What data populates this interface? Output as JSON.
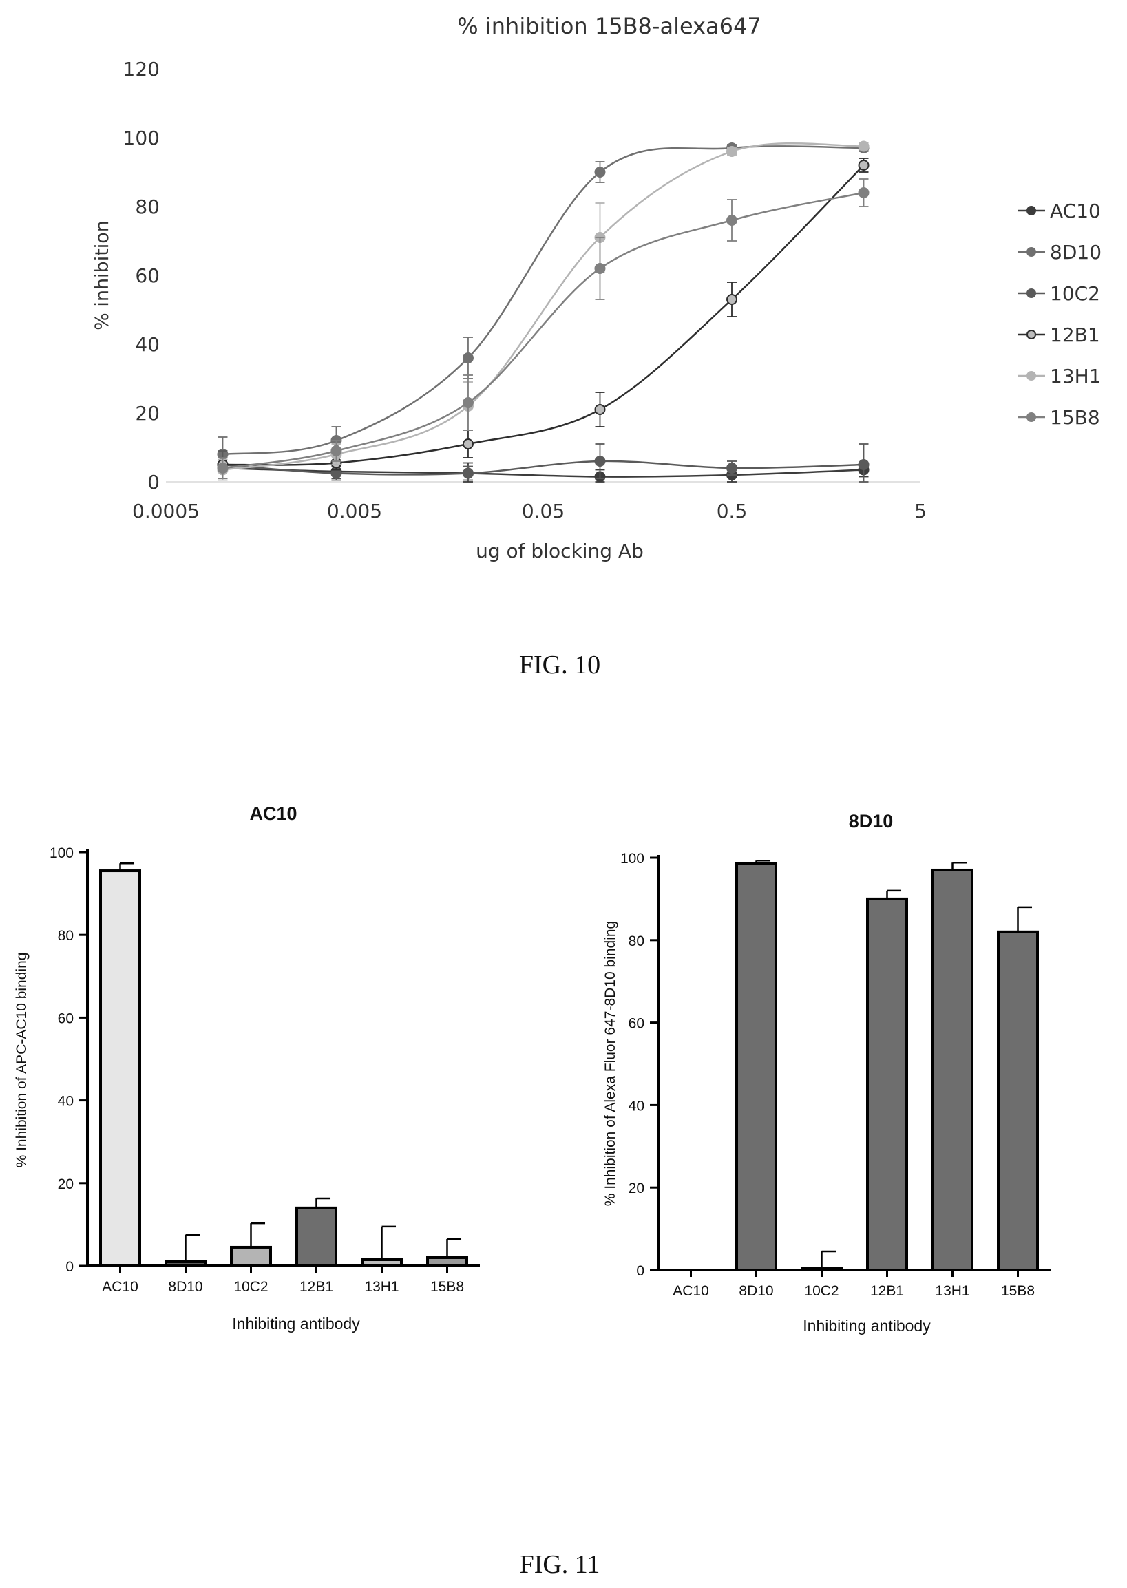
{
  "figures": {
    "fig10_caption": "FIG. 10",
    "fig11_caption": "FIG. 11"
  },
  "chart_data": [
    {
      "type": "line",
      "title": "% inhibition 15B8-alexa647",
      "xlabel": "ug of blocking Ab",
      "ylabel": "% inhibition",
      "x_scale": "log",
      "x_ticks": [
        "0.0005",
        "0.005",
        "0.05",
        "0.5",
        "5"
      ],
      "xlim": [
        0.0005,
        5
      ],
      "y_ticks": [
        "0",
        "20",
        "40",
        "60",
        "80",
        "100",
        "120"
      ],
      "ylim": [
        0,
        120
      ],
      "x": [
        0.001,
        0.004,
        0.02,
        0.1,
        0.5,
        2.5
      ],
      "legend": "right",
      "series": [
        {
          "name": "AC10",
          "color": "#3c3c3c",
          "values": [
            4,
            3,
            2.5,
            1.5,
            2,
            3.5
          ],
          "errors": [
            3,
            2,
            3,
            2,
            2,
            2
          ]
        },
        {
          "name": "8D10",
          "color": "#707070",
          "values": [
            8,
            12,
            36,
            90,
            97,
            97
          ],
          "errors": [
            5,
            4,
            6,
            3,
            1,
            1
          ]
        },
        {
          "name": "10C2",
          "color": "#5a5a5a",
          "values": [
            5,
            2.5,
            2.5,
            6,
            4,
            5
          ],
          "errors": [
            4,
            2,
            2,
            5,
            2,
            6
          ]
        },
        {
          "name": "12B1",
          "color": "#2e2e2e",
          "values": [
            5,
            5.5,
            11,
            21,
            53,
            92
          ],
          "errors": [
            2,
            2,
            4,
            5,
            5,
            2
          ]
        },
        {
          "name": "13H1",
          "color": "#b4b4b4",
          "values": [
            3.5,
            8,
            22,
            71,
            96,
            97.5
          ],
          "errors": [
            3,
            3,
            7,
            10,
            1,
            1
          ]
        },
        {
          "name": "15B8",
          "color": "#808080",
          "values": [
            4,
            9,
            23,
            62,
            76,
            84
          ],
          "errors": [
            3,
            3,
            8,
            9,
            6,
            4
          ]
        }
      ]
    },
    {
      "type": "bar",
      "title": "AC10",
      "xlabel": "Inhibiting antibody",
      "ylabel": "% Inhibition of APC-AC10 binding",
      "y_ticks": [
        "0",
        "20",
        "40",
        "60",
        "80",
        "100"
      ],
      "ylim": [
        0,
        100
      ],
      "categories": [
        "AC10",
        "8D10",
        "10C2",
        "12B1",
        "13H1",
        "15B8"
      ],
      "values": [
        95.5,
        1,
        4.5,
        14,
        1.5,
        2
      ],
      "errors": [
        1.8,
        6.5,
        5.8,
        2.3,
        8,
        4.5
      ],
      "fills": [
        "#e6e6e6",
        "#5a5a5a",
        "#b4b4b4",
        "#6e6e6e",
        "#bdbdbd",
        "#9a9a9a"
      ]
    },
    {
      "type": "bar",
      "title": "8D10",
      "xlabel": "Inhibiting antibody",
      "ylabel": "% Inhibition of Alexa Fluor 647-8D10 binding",
      "y_ticks": [
        "0",
        "20",
        "40",
        "60",
        "80",
        "100"
      ],
      "ylim": [
        0,
        100
      ],
      "categories": [
        "AC10",
        "8D10",
        "10C2",
        "12B1",
        "13H1",
        "15B8"
      ],
      "values": [
        0,
        98.5,
        0.5,
        90,
        97,
        82
      ],
      "errors": [
        0,
        0.8,
        4,
        2,
        1.8,
        6
      ],
      "fills": [
        "#6e6e6e",
        "#6e6e6e",
        "#6e6e6e",
        "#6e6e6e",
        "#6e6e6e",
        "#6e6e6e"
      ]
    }
  ]
}
